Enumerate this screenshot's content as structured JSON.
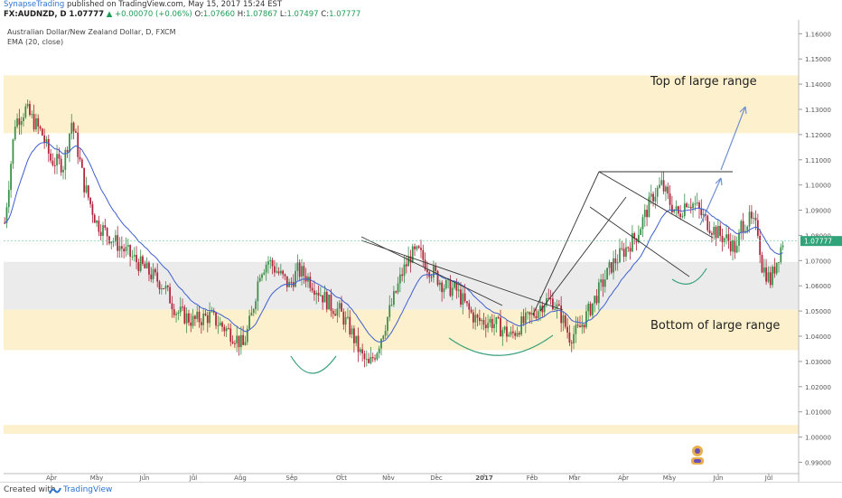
{
  "header": {
    "author": "SynapseTrading",
    "published": "published on TradingView.com, May 15, 2017 15:24 EST",
    "symbol": "FX:AUDNZD, D",
    "last": "1.07777",
    "change_arrow": "▲",
    "change": "+0.00070 (+0.06%)",
    "o_label": "O:",
    "o_value": "1.07660",
    "h_label": "H:",
    "h_value": "1.07867",
    "l_label": "L:",
    "l_value": "1.07497",
    "c_label": "C:",
    "c_value": "1.07777"
  },
  "legend": {
    "instrument": "Australian Dollar/New Zealand Dollar, D, FXCM",
    "ema": "EMA (20, close)"
  },
  "footer": {
    "created": "Created with",
    "brand": "TradingView"
  },
  "colors": {
    "up": "#3a8f4a",
    "down": "#b0243a",
    "ema": "#3f5fcf",
    "zone_orange": "#fdeec6",
    "zone_gray": "#e9e9e9",
    "last_price": "#2fa37a",
    "arc": "#3aa07a",
    "arrow": "#7090d0"
  },
  "chart_data": {
    "type": "candlestick",
    "title": "Australian Dollar/New Zealand Dollar, D, FXCM",
    "ylim": [
      0.9855,
      1.1655
    ],
    "y_ticks": [
      "1.16000",
      "1.15000",
      "1.14000",
      "1.13000",
      "1.12000",
      "1.11000",
      "1.10000",
      "1.09000",
      "1.08000",
      "1.07000",
      "1.06000",
      "1.05000",
      "1.04000",
      "1.03000",
      "1.02000",
      "1.01000",
      "1.00000",
      "0.99000"
    ],
    "x_ticks": [
      "Apr",
      "May",
      "Jun",
      "Jul",
      "Aug",
      "Sep",
      "Oct",
      "Nov",
      "Dec",
      "2017",
      "Feb",
      "Mar",
      "Apr",
      "May",
      "Jun",
      "Jul"
    ],
    "last_price": "1.07777",
    "ema_label": "EMA (20, close)",
    "zones": [
      {
        "type": "resistance",
        "from": 1.1205,
        "to": 1.1435
      },
      {
        "type": "range",
        "from": 1.0505,
        "to": 1.0695
      },
      {
        "type": "support",
        "from": 1.0345,
        "to": 1.0505
      },
      {
        "type": "support",
        "from": 1.0013,
        "to": 1.0048
      }
    ],
    "annotations": [
      "Top of large range",
      "Bottom of large range"
    ],
    "series_waypoints": [
      [
        0,
        1.085
      ],
      [
        5,
        1.125
      ],
      [
        10,
        1.13
      ],
      [
        18,
        1.12
      ],
      [
        22,
        1.11
      ],
      [
        28,
        1.108
      ],
      [
        32,
        1.125
      ],
      [
        34,
        1.118
      ],
      [
        38,
        1.1
      ],
      [
        44,
        1.085
      ],
      [
        52,
        1.078
      ],
      [
        60,
        1.072
      ],
      [
        68,
        1.066
      ],
      [
        76,
        1.06
      ],
      [
        82,
        1.05
      ],
      [
        90,
        1.046
      ],
      [
        98,
        1.048
      ],
      [
        104,
        1.044
      ],
      [
        110,
        1.04
      ],
      [
        114,
        1.036
      ],
      [
        118,
        1.048
      ],
      [
        122,
        1.066
      ],
      [
        126,
        1.07
      ],
      [
        132,
        1.064
      ],
      [
        136,
        1.06
      ],
      [
        140,
        1.066
      ],
      [
        144,
        1.064
      ],
      [
        148,
        1.06
      ],
      [
        152,
        1.056
      ],
      [
        156,
        1.052
      ],
      [
        160,
        1.05
      ],
      [
        165,
        1.043
      ],
      [
        170,
        1.033
      ],
      [
        174,
        1.028
      ],
      [
        178,
        1.035
      ],
      [
        182,
        1.045
      ],
      [
        186,
        1.055
      ],
      [
        190,
        1.065
      ],
      [
        194,
        1.072
      ],
      [
        198,
        1.073
      ],
      [
        202,
        1.068
      ],
      [
        206,
        1.064
      ],
      [
        210,
        1.06
      ],
      [
        216,
        1.058
      ],
      [
        222,
        1.05
      ],
      [
        226,
        1.046
      ],
      [
        232,
        1.046
      ],
      [
        236,
        1.044
      ],
      [
        242,
        1.04
      ],
      [
        246,
        1.044
      ],
      [
        252,
        1.048
      ],
      [
        258,
        1.054
      ],
      [
        262,
        1.054
      ],
      [
        266,
        1.048
      ],
      [
        270,
        1.04
      ],
      [
        274,
        1.042
      ],
      [
        278,
        1.048
      ],
      [
        284,
        1.058
      ],
      [
        290,
        1.068
      ],
      [
        296,
        1.074
      ],
      [
        302,
        1.08
      ],
      [
        306,
        1.088
      ],
      [
        310,
        1.096
      ],
      [
        314,
        1.1
      ],
      [
        318,
        1.093
      ],
      [
        322,
        1.088
      ],
      [
        326,
        1.094
      ],
      [
        330,
        1.092
      ],
      [
        334,
        1.087
      ],
      [
        338,
        1.083
      ],
      [
        342,
        1.08
      ],
      [
        346,
        1.078
      ],
      [
        350,
        1.074
      ],
      [
        352,
        1.084
      ],
      [
        356,
        1.086
      ],
      [
        360,
        1.082
      ],
      [
        362,
        1.068
      ],
      [
        366,
        1.062
      ],
      [
        369,
        1.07
      ],
      [
        372,
        1.0778
      ]
    ]
  }
}
